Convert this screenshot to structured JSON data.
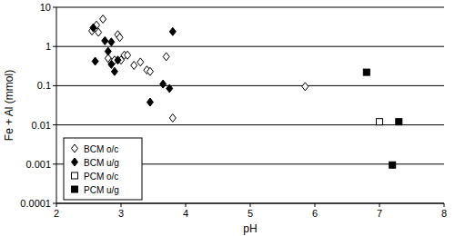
{
  "chart_data": {
    "type": "scatter",
    "x_label": "pH",
    "y_label": "Fe + Al (mmol)",
    "log": "y",
    "grid": true,
    "legend": "lower left",
    "xlim": [
      2,
      8
    ],
    "xticks": [
      2,
      3,
      4,
      5,
      6,
      7,
      8
    ],
    "ylim": [
      0.0001,
      10
    ],
    "yticks": [
      0.0001,
      0.001,
      0.01,
      0.1,
      1,
      10
    ],
    "series": [
      {
        "name": "BCM o/c",
        "color": "#000000",
        "marker": "open-diamond",
        "x": [
          2.55,
          2.62,
          2.65,
          2.72,
          2.8,
          2.85,
          2.9,
          2.95,
          2.98,
          3.0,
          3.05,
          3.1,
          3.2,
          3.3,
          3.4,
          3.45,
          3.7,
          3.8,
          5.85
        ],
        "values": [
          2.5,
          3.5,
          2.3,
          5.0,
          0.5,
          0.4,
          0.45,
          2.0,
          1.7,
          0.45,
          0.6,
          0.6,
          0.33,
          0.4,
          0.25,
          0.23,
          0.55,
          0.015,
          0.095
        ]
      },
      {
        "name": "BCM u/g",
        "color": "#000000",
        "marker": "diamond",
        "x": [
          2.57,
          2.6,
          2.75,
          2.8,
          2.85,
          2.85,
          2.9,
          2.95,
          3.45,
          3.65,
          3.75,
          3.8
        ],
        "values": [
          3.0,
          0.42,
          1.4,
          0.75,
          1.3,
          0.35,
          0.23,
          0.45,
          0.038,
          0.11,
          0.085,
          2.4
        ]
      },
      {
        "name": "PCM o/c",
        "color": "#000000",
        "marker": "open-square",
        "x": [
          7.0
        ],
        "values": [
          0.012
        ]
      },
      {
        "name": "PCM u/g",
        "color": "#000000",
        "marker": "square",
        "x": [
          6.8,
          7.2,
          7.3
        ],
        "values": [
          0.22,
          0.00095,
          0.012
        ]
      }
    ]
  }
}
